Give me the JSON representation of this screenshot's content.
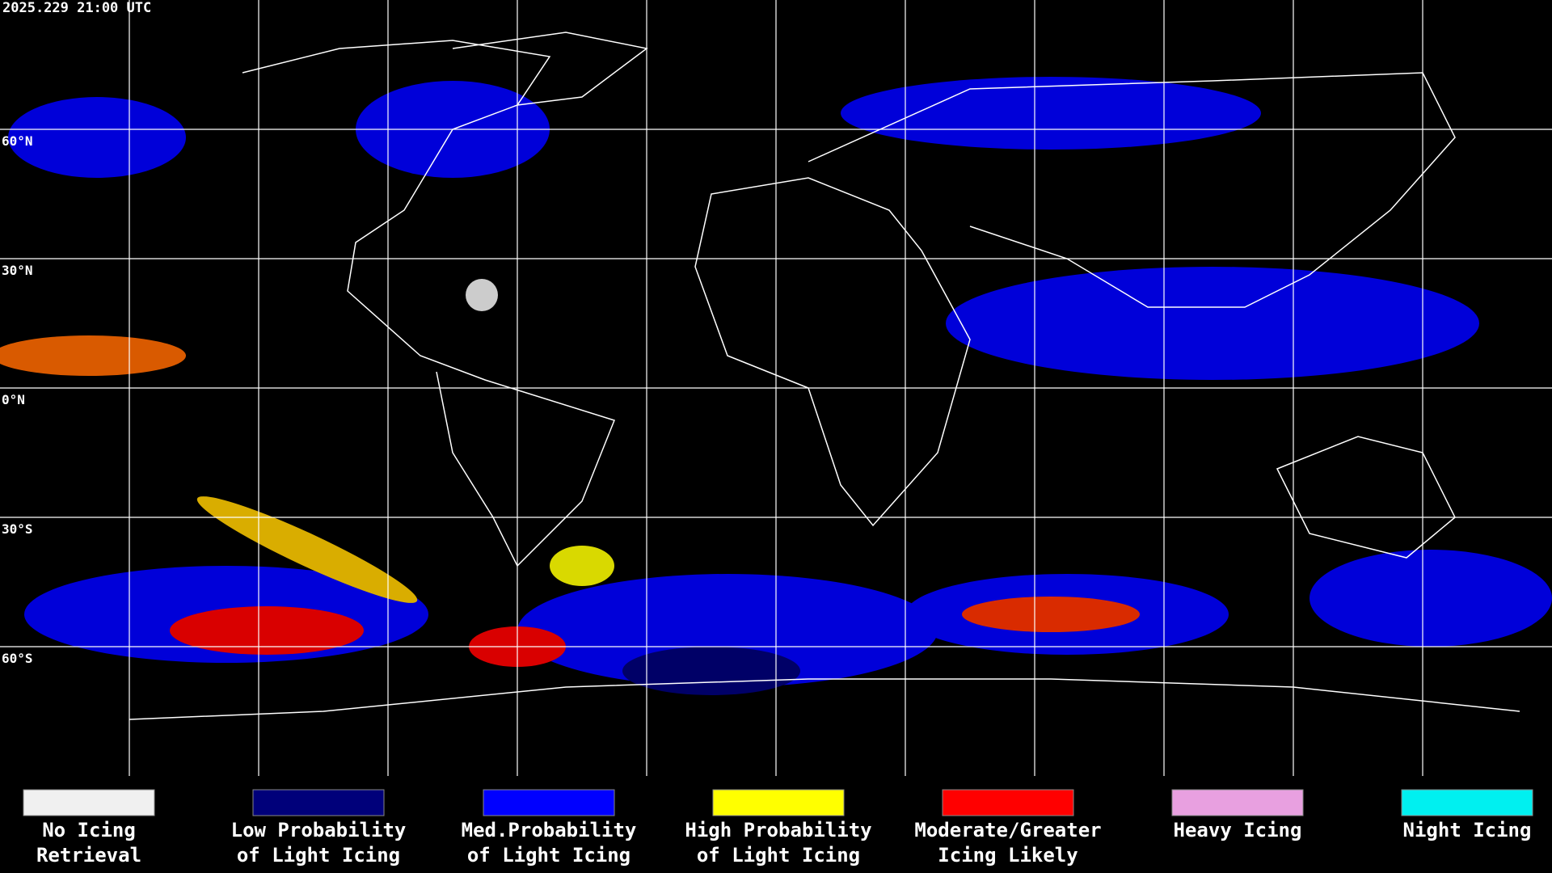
{
  "header": {
    "timestamp": "2025.229 21:00 UTC"
  },
  "map": {
    "grid_labels": [
      "60°N",
      "30°N",
      "0°N",
      "30°S",
      "60°S"
    ]
  },
  "legend": {
    "items": [
      {
        "color": "#f0f0f0",
        "lines": [
          "No Icing",
          "Retrieval"
        ]
      },
      {
        "color": "#00007a",
        "lines": [
          "Low Probability",
          "of Light Icing"
        ]
      },
      {
        "color": "#0000ff",
        "lines": [
          "Med.Probability",
          "of Light Icing"
        ]
      },
      {
        "color": "#ffff00",
        "lines": [
          "High Probability",
          "of Light Icing"
        ]
      },
      {
        "color": "#ff0000",
        "lines": [
          "Moderate/Greater",
          "Icing Likely"
        ]
      },
      {
        "color": "#e8a0e0",
        "lines": [
          "Heavy Icing",
          ""
        ]
      },
      {
        "color": "#00f0f0",
        "lines": [
          "Night Icing",
          ""
        ]
      }
    ]
  }
}
